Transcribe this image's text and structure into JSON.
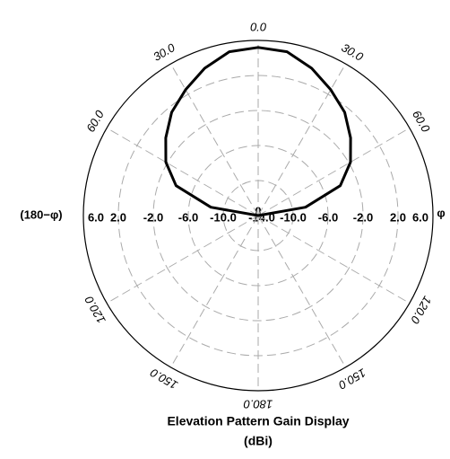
{
  "chart_data": {
    "type": "polar",
    "title": "Elevation Pattern Gain Display",
    "subtitle": "(dBi)",
    "left_label": "(180−φ)",
    "right_label": "φ",
    "origin_label": "0",
    "rlim": [
      -14,
      6
    ],
    "rticks": [
      {
        "value": -14,
        "label": "-14.0"
      },
      {
        "value": -10,
        "label": "-10.0"
      },
      {
        "value": -6,
        "label": "-6.0"
      },
      {
        "value": -2,
        "label": "-2.0"
      },
      {
        "value": 2,
        "label": "2.0"
      },
      {
        "value": 6,
        "label": "6.0"
      }
    ],
    "angle_ticks": [
      {
        "value": 0,
        "label": "0.0"
      },
      {
        "value": 30,
        "label": "30.0"
      },
      {
        "value": 60,
        "label": "60.0"
      },
      {
        "value": 120,
        "label": "120.0"
      },
      {
        "value": 150,
        "label": "150.0"
      },
      {
        "value": 180,
        "label": "180.0"
      },
      {
        "value": -30,
        "label": "30.0"
      },
      {
        "value": -60,
        "label": "60.0"
      },
      {
        "value": -120,
        "label": "120.0"
      },
      {
        "value": -150,
        "label": "150.0"
      }
    ],
    "grid": true,
    "series": [
      {
        "color": "#000000",
        "x": [
          -90,
          -80,
          -70,
          -60,
          -50,
          -40,
          -30,
          -20,
          -10,
          0,
          10,
          20,
          30,
          40,
          50,
          60,
          70,
          80,
          90
        ],
        "values": [
          -14,
          -8.5,
          -4.0,
          -1.8,
          -0.2,
          1.4,
          2.6,
          3.9,
          5.0,
          5.2,
          5.0,
          3.9,
          2.6,
          1.4,
          -0.2,
          -1.8,
          -4.0,
          -8.5,
          -14
        ]
      }
    ]
  }
}
